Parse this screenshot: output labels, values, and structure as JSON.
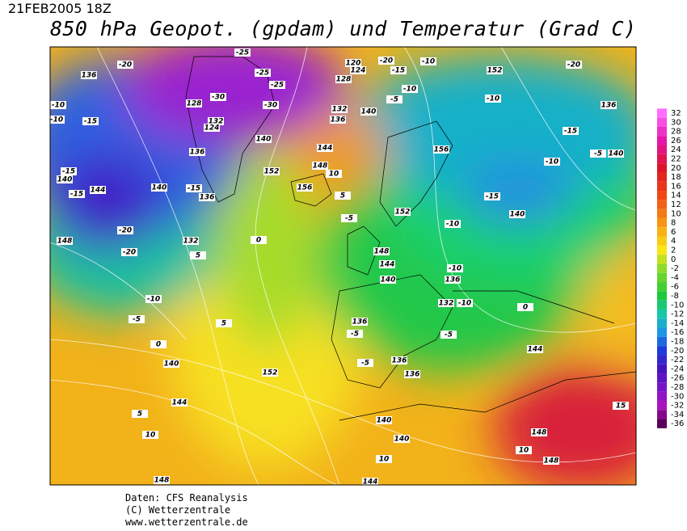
{
  "header": {
    "date": "21FEB2005 18Z",
    "title": "850 hPa Geopot. (gpdam) und  Temperatur (Grad C)"
  },
  "colorbar": {
    "values": [
      32,
      30,
      28,
      26,
      24,
      22,
      20,
      18,
      16,
      14,
      12,
      10,
      8,
      6,
      4,
      2,
      0,
      -2,
      -4,
      -6,
      -8,
      -10,
      -12,
      -14,
      -16,
      -18,
      -20,
      -22,
      -24,
      -26,
      -28,
      -30,
      -32,
      -34,
      -36
    ]
  },
  "map": {
    "labels": [
      136,
      -20,
      -10,
      -10,
      -15,
      128,
      -30,
      132,
      124,
      -25,
      -25,
      -25,
      -30,
      120,
      124,
      128,
      -20,
      -15,
      -10,
      -10,
      -5,
      140,
      132,
      136,
      152,
      -10,
      136,
      -15,
      -20,
      -5,
      140,
      -10,
      136,
      140,
      144,
      148,
      152,
      156,
      156,
      -15,
      140,
      152,
      -10,
      148,
      144,
      140,
      -10,
      136,
      132,
      -10,
      136,
      -5,
      -5,
      136,
      136,
      -5,
      144,
      0,
      140,
      144,
      5,
      10,
      148,
      152,
      140,
      140,
      10,
      144,
      148,
      10,
      15,
      148,
      -20,
      -20,
      -10,
      -5,
      132,
      136,
      140,
      -15,
      -15,
      -15,
      144,
      140,
      148,
      5,
      5,
      0,
      0,
      -5,
      5,
      10
    ]
  },
  "footer": {
    "lines": [
      "Daten: CFS Reanalysis",
      "(C) Wetterzentrale",
      "www.wetterzentrale.de"
    ]
  }
}
